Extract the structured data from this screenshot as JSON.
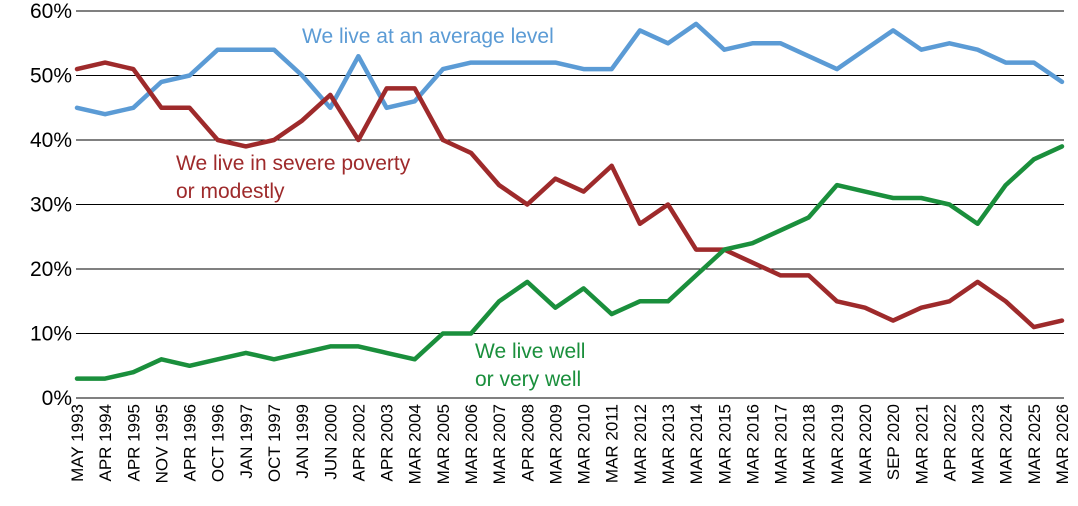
{
  "chart_data": {
    "type": "line",
    "title": "",
    "xlabel": "",
    "ylabel": "",
    "ylim": [
      0,
      60
    ],
    "yticks": [
      0,
      10,
      20,
      30,
      40,
      50,
      60
    ],
    "ytick_labels": [
      "0%",
      "10%",
      "20%",
      "30%",
      "40%",
      "50%",
      "60%"
    ],
    "grid": "horizontal",
    "legend": "inline labels",
    "categories": [
      "MAY 1993",
      "APR 1994",
      "APR 1995",
      "NOV 1995",
      "APR 1996",
      "OCT 1996",
      "JAN 1997",
      "OCT 1997",
      "JAN 1999",
      "JUN 2000",
      "APR 2002",
      "APR 2003",
      "MAR 2004",
      "MAR 2005",
      "MAR 2006",
      "MAR 2007",
      "APR 2008",
      "MAR 2009",
      "MAR 2010",
      "MAR 2011",
      "MAR 2012",
      "MAR 2013",
      "MAR 2014",
      "MAR 2015",
      "MAR 2016",
      "MAR 2017",
      "MAR 2018",
      "MAR 2019",
      "MAR 2020",
      "SEP 2020",
      "MAR 2021",
      "APR 2022",
      "MAR 2023",
      "MAR 2024",
      "MAR 2025",
      "MAR 2026"
    ],
    "series": [
      {
        "name": "We live at an average level",
        "color": "#5b9bd5",
        "values": [
          45,
          44,
          45,
          49,
          50,
          54,
          54,
          54,
          50,
          45,
          53,
          45,
          46,
          51,
          52,
          52,
          52,
          52,
          51,
          51,
          57,
          55,
          58,
          54,
          55,
          55,
          53,
          51,
          54,
          57,
          54,
          55,
          54,
          52,
          52,
          49
        ]
      },
      {
        "name": "We live in severe poverty or modestly",
        "name_lines": [
          "We live in severe poverty",
          "or modestly"
        ],
        "color": "#9e2a2b",
        "values": [
          51,
          52,
          51,
          45,
          45,
          40,
          39,
          40,
          43,
          47,
          40,
          48,
          48,
          40,
          38,
          33,
          30,
          34,
          32,
          36,
          27,
          30,
          23,
          23,
          21,
          19,
          19,
          15,
          14,
          12,
          14,
          15,
          18,
          15,
          11,
          12
        ]
      },
      {
        "name": "We live well or very well",
        "name_lines": [
          "We live well",
          "or very well"
        ],
        "color": "#1a8f3c",
        "values": [
          3,
          3,
          4,
          6,
          5,
          6,
          7,
          6,
          7,
          8,
          8,
          7,
          6,
          10,
          10,
          15,
          18,
          14,
          17,
          13,
          15,
          15,
          19,
          23,
          24,
          26,
          28,
          33,
          32,
          31,
          31,
          30,
          27,
          33,
          37,
          39
        ]
      }
    ]
  }
}
